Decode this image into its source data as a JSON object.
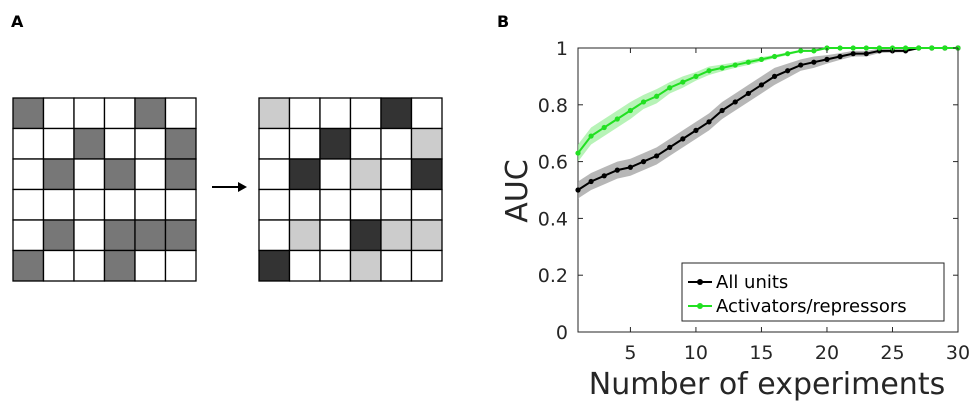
{
  "panel_a": {
    "label": "A",
    "grid_before": [
      [
        1,
        0,
        0,
        0,
        1,
        0
      ],
      [
        0,
        0,
        1,
        0,
        0,
        1
      ],
      [
        0,
        1,
        0,
        1,
        0,
        1
      ],
      [
        0,
        0,
        0,
        0,
        0,
        0
      ],
      [
        0,
        1,
        0,
        1,
        1,
        1
      ],
      [
        1,
        0,
        0,
        1,
        0,
        0
      ]
    ],
    "grid_after": [
      [
        1,
        0,
        0,
        0,
        2,
        0
      ],
      [
        0,
        0,
        2,
        0,
        0,
        1
      ],
      [
        0,
        2,
        0,
        1,
        0,
        2
      ],
      [
        0,
        0,
        0,
        0,
        0,
        0
      ],
      [
        0,
        1,
        0,
        2,
        1,
        1
      ],
      [
        2,
        0,
        0,
        1,
        0,
        0
      ]
    ],
    "cell_colors": [
      "#ffffff",
      "#cccccc",
      "#333333"
    ],
    "before_fill": "#777777",
    "arrow": "→"
  },
  "panel_b": {
    "label": "B"
  },
  "chart_data": {
    "type": "line",
    "xlabel": "Number of experiments",
    "ylabel": "AUC",
    "xlim": [
      1,
      30
    ],
    "ylim": [
      0,
      1
    ],
    "xticks": [
      5,
      10,
      15,
      20,
      25,
      30
    ],
    "yticks": [
      0,
      0.2,
      0.4,
      0.6,
      0.8,
      1
    ],
    "ytick_labels": [
      "0",
      "0.2",
      "0.4",
      "0.6",
      "0.8",
      "1"
    ],
    "legend_position": "bottom-right",
    "x": [
      1,
      2,
      3,
      4,
      5,
      6,
      7,
      8,
      9,
      10,
      11,
      12,
      13,
      14,
      15,
      16,
      17,
      18,
      19,
      20,
      21,
      22,
      23,
      24,
      25,
      26,
      27,
      28,
      29,
      30
    ],
    "series": [
      {
        "name": "All units",
        "color": "#000000",
        "band_color": "#999999",
        "values": [
          0.5,
          0.53,
          0.55,
          0.57,
          0.58,
          0.6,
          0.62,
          0.65,
          0.68,
          0.71,
          0.74,
          0.78,
          0.81,
          0.84,
          0.87,
          0.9,
          0.92,
          0.94,
          0.95,
          0.96,
          0.97,
          0.98,
          0.98,
          0.99,
          0.99,
          0.99,
          1.0,
          1.0,
          1.0,
          1.0
        ],
        "band": [
          0.03,
          0.03,
          0.03,
          0.03,
          0.03,
          0.03,
          0.03,
          0.03,
          0.03,
          0.03,
          0.03,
          0.03,
          0.03,
          0.03,
          0.03,
          0.03,
          0.025,
          0.02,
          0.02,
          0.015,
          0.012,
          0.01,
          0.01,
          0.008,
          0.006,
          0.005,
          0.004,
          0.003,
          0.002,
          0.002
        ]
      },
      {
        "name": "Activators/repressors",
        "color": "#22e022",
        "band_color": "#99ee99",
        "values": [
          0.63,
          0.69,
          0.72,
          0.75,
          0.78,
          0.81,
          0.83,
          0.86,
          0.88,
          0.9,
          0.92,
          0.93,
          0.94,
          0.95,
          0.96,
          0.97,
          0.98,
          0.99,
          0.99,
          1.0,
          1.0,
          1.0,
          1.0,
          1.0,
          1.0,
          1.0,
          1.0,
          1.0,
          1.0,
          1.0
        ],
        "band": [
          0.03,
          0.03,
          0.03,
          0.03,
          0.03,
          0.025,
          0.025,
          0.02,
          0.02,
          0.015,
          0.015,
          0.012,
          0.01,
          0.01,
          0.008,
          0.006,
          0.005,
          0.004,
          0.003,
          0.002,
          0.002,
          0.002,
          0.001,
          0.001,
          0.001,
          0.001,
          0.001,
          0.001,
          0.001,
          0.001
        ]
      }
    ]
  }
}
